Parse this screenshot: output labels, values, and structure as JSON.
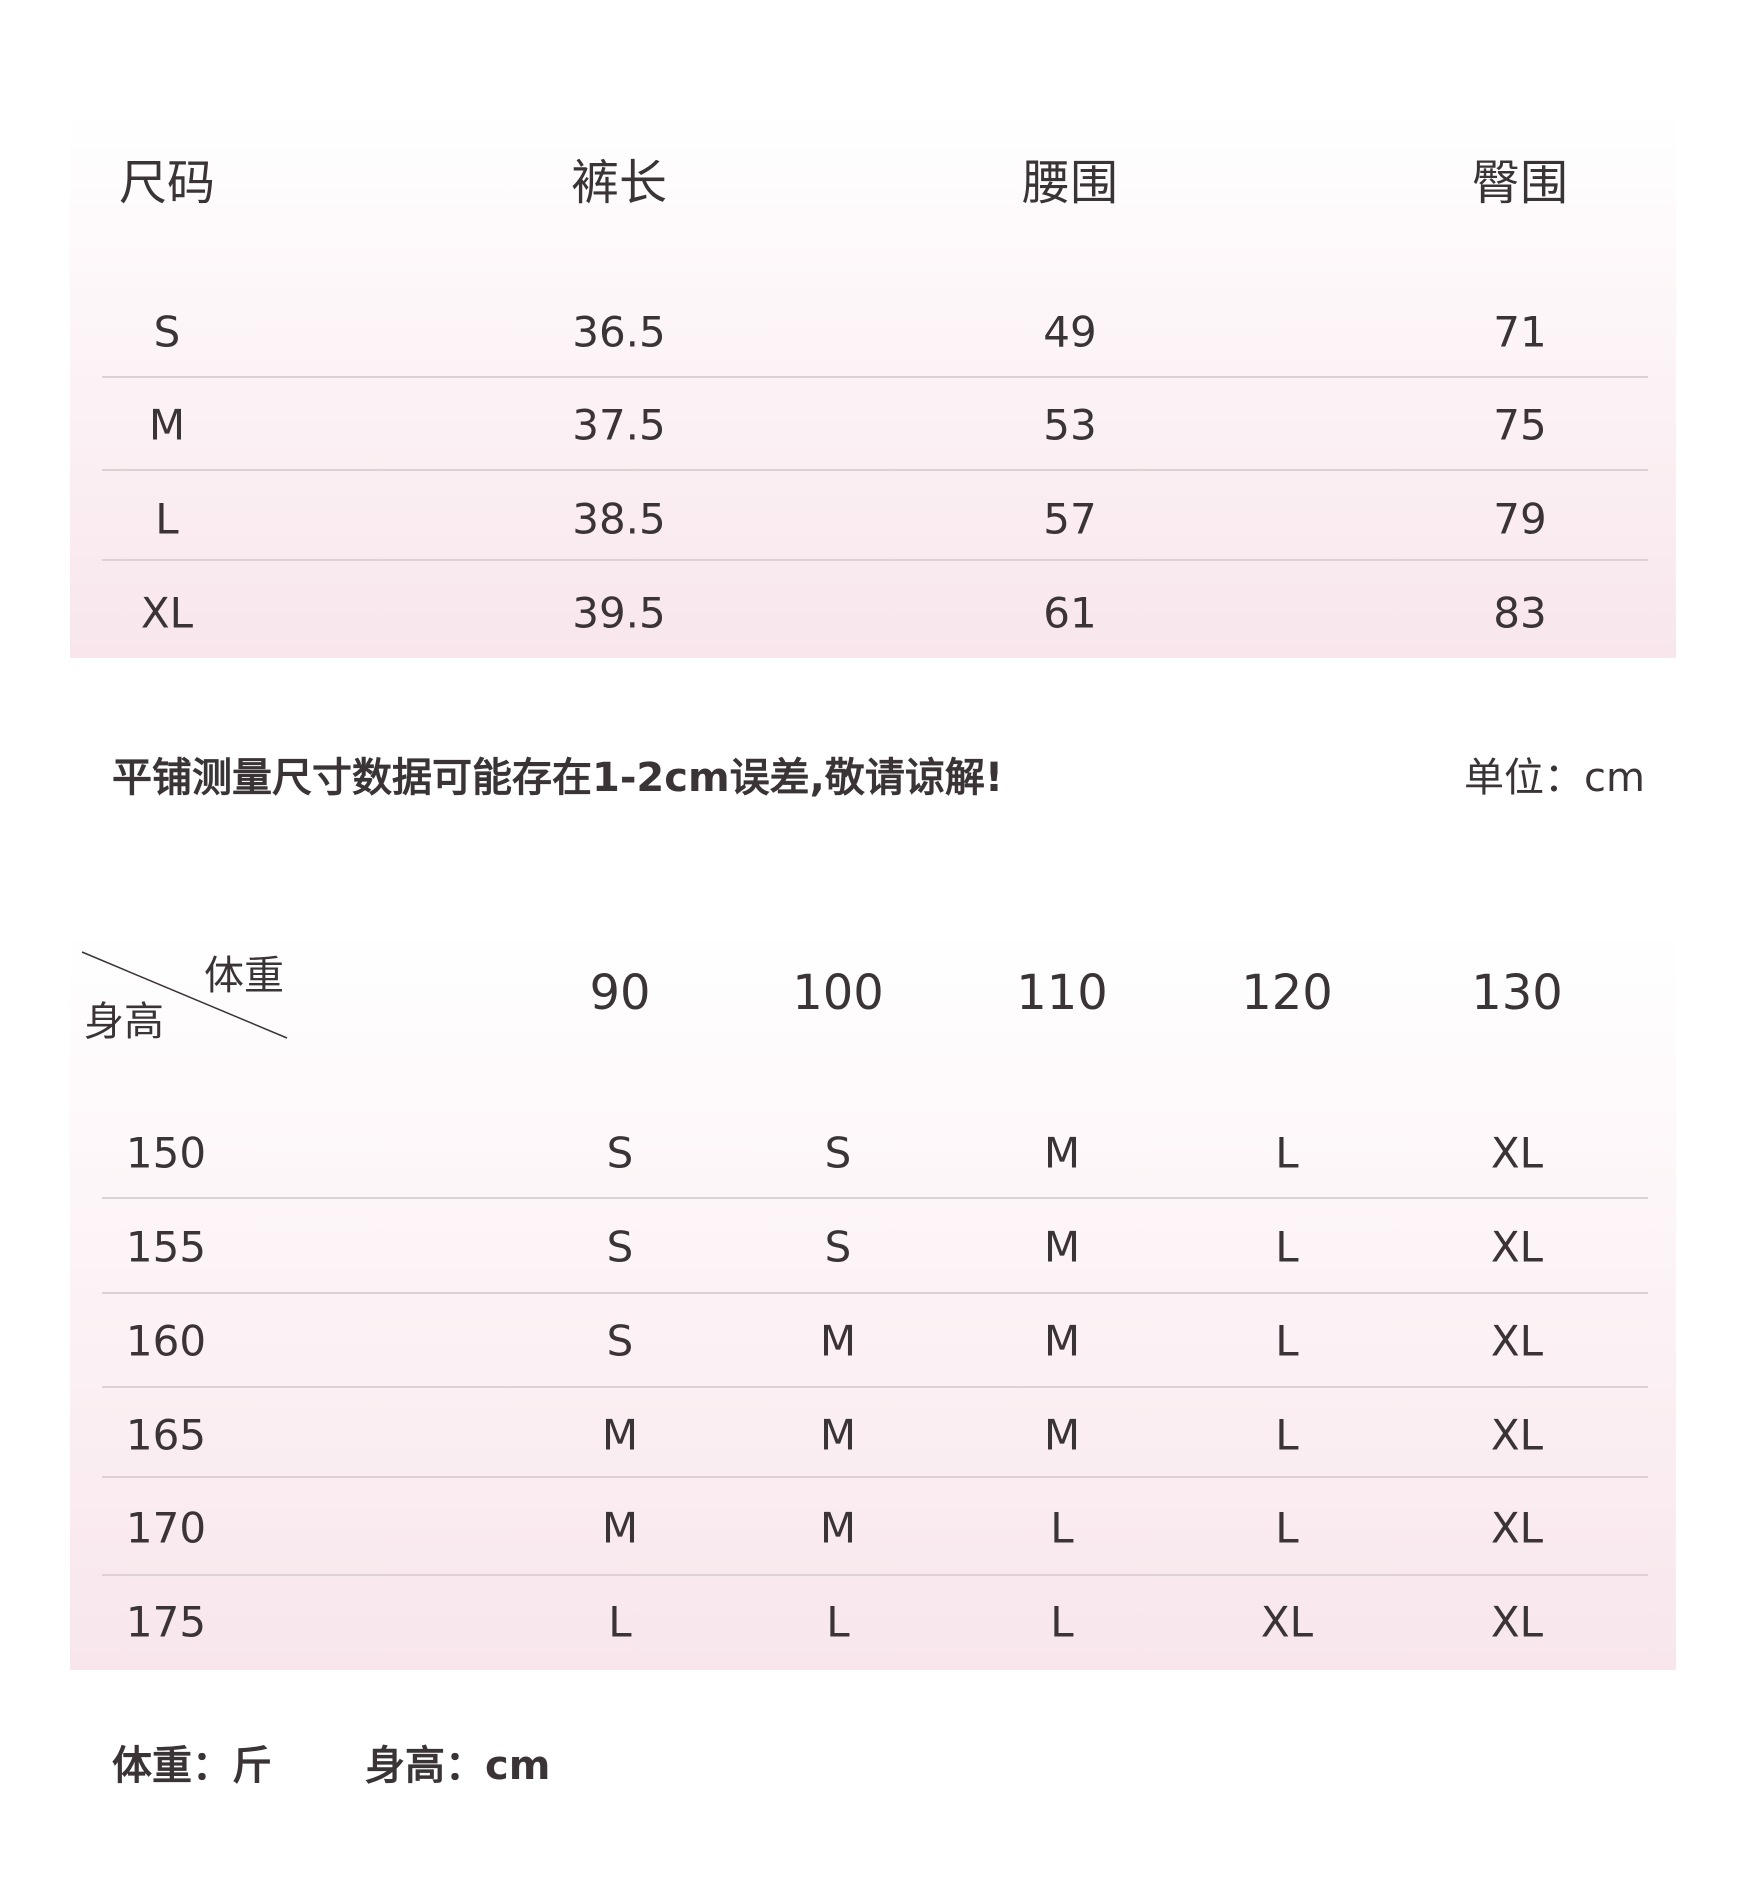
{
  "size_chart": {
    "headers": [
      "尺码",
      "裤长",
      "腰围",
      "臀围"
    ],
    "rows": [
      [
        "S",
        "36.5",
        "49",
        "71"
      ],
      [
        "M",
        "37.5",
        "53",
        "75"
      ],
      [
        "L",
        "38.5",
        "57",
        "79"
      ],
      [
        "XL",
        "39.5",
        "61",
        "83"
      ]
    ]
  },
  "note": "平铺测量尺寸数据可能存在1-2cm误差,敬请谅解!",
  "unit": "单位：cm",
  "recommend_chart": {
    "corner_top": "体重",
    "corner_bottom": "身高",
    "weights": [
      "90",
      "100",
      "110",
      "120",
      "130"
    ],
    "rows": [
      {
        "height": "150",
        "sizes": [
          "S",
          "S",
          "M",
          "L",
          "XL"
        ]
      },
      {
        "height": "155",
        "sizes": [
          "S",
          "S",
          "M",
          "L",
          "XL"
        ]
      },
      {
        "height": "160",
        "sizes": [
          "S",
          "M",
          "M",
          "L",
          "XL"
        ]
      },
      {
        "height": "165",
        "sizes": [
          "M",
          "M",
          "M",
          "L",
          "XL"
        ]
      },
      {
        "height": "170",
        "sizes": [
          "M",
          "M",
          "L",
          "L",
          "XL"
        ]
      },
      {
        "height": "175",
        "sizes": [
          "L",
          "L",
          "L",
          "XL",
          "XL"
        ]
      }
    ]
  },
  "footer": {
    "weight_unit": "体重：斤",
    "height_unit": "身高：cm"
  },
  "colors": {
    "text": "#3a3437",
    "panel_bottom": "#f8e6ec",
    "divider": "#dcd2d6"
  }
}
